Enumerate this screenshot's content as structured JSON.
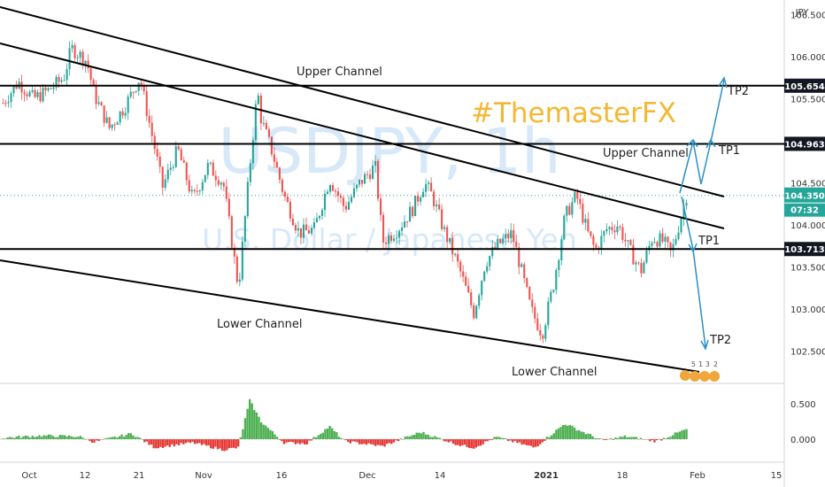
{
  "chart_data": {
    "type": "candlestick",
    "symbol": "USDJPY",
    "interval": "1h",
    "description": "U.S. Dollar / Japanese Yen",
    "currency": "JPY",
    "brand": "#ThemasterFX",
    "x_ticks": [
      "Oct",
      "12",
      "21",
      "Nov",
      "16",
      "Dec",
      "14",
      "2021",
      "18",
      "Feb",
      "15"
    ],
    "y_ticks": [
      "106.500",
      "106.000",
      "105.500",
      "105.000",
      "104.500",
      "104.000",
      "103.500",
      "103.000",
      "102.500"
    ],
    "ylim": [
      102.2,
      106.62
    ],
    "oscillator_ticks": [
      "0.500",
      "0.000"
    ],
    "oscillator_ylim": [
      -0.3,
      0.7
    ],
    "levels": [
      {
        "value": "105.654",
        "price": 105.654
      },
      {
        "value": "104.963",
        "price": 104.963
      },
      {
        "value": "103.713",
        "price": 103.713
      }
    ],
    "current": {
      "price": "104.350",
      "price_value": 104.35,
      "countdown": "07:32"
    },
    "annotations": {
      "upper_channel_top": "Upper Channel",
      "upper_channel_mid": "Upper Channel",
      "lower_channel_mid": "Lower Channel",
      "lower_channel_bottom": "Lower Channel",
      "tp2_up": "TP2",
      "tp1_up": "TP1",
      "tp1_down": "TP1",
      "tp2_down": "TP2"
    },
    "events": [
      "5",
      "1",
      "3",
      "2"
    ],
    "price_path": [
      [
        0,
        105.45
      ],
      [
        0.02,
        105.7
      ],
      [
        0.04,
        105.5
      ],
      [
        0.06,
        105.6
      ],
      [
        0.08,
        105.75
      ],
      [
        0.09,
        106.1
      ],
      [
        0.11,
        105.95
      ],
      [
        0.12,
        105.55
      ],
      [
        0.14,
        105.15
      ],
      [
        0.16,
        105.4
      ],
      [
        0.18,
        105.75
      ],
      [
        0.2,
        104.9
      ],
      [
        0.21,
        104.45
      ],
      [
        0.23,
        104.9
      ],
      [
        0.25,
        104.3
      ],
      [
        0.27,
        104.7
      ],
      [
        0.29,
        104.5
      ],
      [
        0.31,
        103.25
      ],
      [
        0.325,
        104.7
      ],
      [
        0.335,
        105.6
      ],
      [
        0.34,
        105.25
      ],
      [
        0.355,
        104.85
      ],
      [
        0.37,
        104.35
      ],
      [
        0.39,
        103.9
      ],
      [
        0.41,
        103.95
      ],
      [
        0.43,
        104.55
      ],
      [
        0.45,
        104.2
      ],
      [
        0.47,
        104.5
      ],
      [
        0.49,
        104.7
      ],
      [
        0.5,
        103.8
      ],
      [
        0.52,
        103.95
      ],
      [
        0.54,
        104.2
      ],
      [
        0.555,
        104.5
      ],
      [
        0.565,
        104.35
      ],
      [
        0.58,
        103.95
      ],
      [
        0.6,
        103.5
      ],
      [
        0.62,
        102.95
      ],
      [
        0.635,
        103.55
      ],
      [
        0.65,
        103.75
      ],
      [
        0.67,
        103.9
      ],
      [
        0.68,
        103.55
      ],
      [
        0.695,
        103.0
      ],
      [
        0.71,
        102.7
      ],
      [
        0.725,
        103.3
      ],
      [
        0.74,
        104.1
      ],
      [
        0.755,
        104.35
      ],
      [
        0.77,
        103.9
      ],
      [
        0.78,
        103.7
      ],
      [
        0.795,
        103.95
      ],
      [
        0.81,
        104.0
      ],
      [
        0.825,
        103.7
      ],
      [
        0.84,
        103.45
      ],
      [
        0.855,
        103.85
      ],
      [
        0.87,
        103.8
      ],
      [
        0.88,
        103.65
      ],
      [
        0.9,
        104.35
      ]
    ],
    "oscillator_path": [
      [
        0,
        0.02
      ],
      [
        0.05,
        0.05
      ],
      [
        0.1,
        0.04
      ],
      [
        0.12,
        -0.04
      ],
      [
        0.17,
        0.08
      ],
      [
        0.2,
        -0.12
      ],
      [
        0.25,
        -0.05
      ],
      [
        0.29,
        -0.15
      ],
      [
        0.31,
        -0.12
      ],
      [
        0.325,
        0.55
      ],
      [
        0.34,
        0.25
      ],
      [
        0.37,
        -0.05
      ],
      [
        0.4,
        -0.06
      ],
      [
        0.43,
        0.18
      ],
      [
        0.45,
        -0.03
      ],
      [
        0.5,
        -0.1
      ],
      [
        0.55,
        0.1
      ],
      [
        0.6,
        -0.08
      ],
      [
        0.62,
        -0.12
      ],
      [
        0.65,
        0.03
      ],
      [
        0.7,
        -0.12
      ],
      [
        0.74,
        0.22
      ],
      [
        0.76,
        0.12
      ],
      [
        0.79,
        -0.02
      ],
      [
        0.82,
        0.04
      ],
      [
        0.86,
        -0.03
      ],
      [
        0.9,
        0.14
      ]
    ]
  }
}
